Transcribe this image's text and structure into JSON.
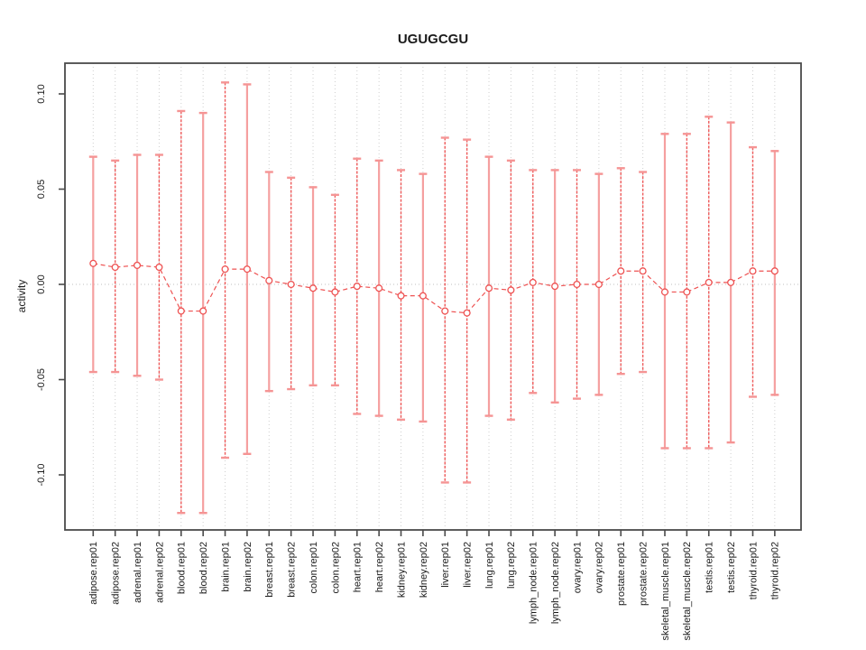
{
  "title": "UGUGCGU",
  "chart_data": {
    "type": "line",
    "subtype": "points-with-error-bars",
    "title": "UGUGCGU",
    "xlabel": "",
    "ylabel": "activity",
    "ylim": [
      -0.125,
      0.115
    ],
    "yticks": [
      0.1,
      0.05,
      0.0,
      -0.05,
      -0.1
    ],
    "ytick_labels": [
      "0.10",
      "0.05",
      "0.00",
      "-0.05",
      "-0.10"
    ],
    "grid": "dotted vertical gridline at every category; dotted horizontal line at y=0; no legend",
    "categories": [
      "adipose.rep01",
      "adipose.rep02",
      "adrenal.rep01",
      "adrenal.rep02",
      "blood.rep01",
      "blood.rep02",
      "brain.rep01",
      "brain.rep02",
      "breast.rep01",
      "breast.rep02",
      "colon.rep01",
      "colon.rep02",
      "heart.rep01",
      "heart.rep02",
      "kidney.rep01",
      "kidney.rep02",
      "liver.rep01",
      "liver.rep02",
      "lung.rep01",
      "lung.rep02",
      "lymph_node.rep01",
      "lymph_node.rep02",
      "ovary.rep01",
      "ovary.rep02",
      "prostate.rep01",
      "prostate.rep02",
      "skeletal_muscle.rep01",
      "skeletal_muscle.rep02",
      "testis.rep01",
      "testis.rep02",
      "thyroid.rep01",
      "thyroid.rep02"
    ],
    "series": [
      {
        "name": "activity",
        "values": [
          0.011,
          0.009,
          0.01,
          0.009,
          -0.014,
          -0.014,
          0.008,
          0.008,
          0.002,
          0.0,
          -0.002,
          -0.004,
          -0.001,
          -0.002,
          -0.006,
          -0.006,
          -0.014,
          -0.015,
          -0.002,
          -0.003,
          0.001,
          -0.001,
          0.0,
          0.0,
          0.007,
          0.007,
          -0.004,
          -0.004,
          0.001,
          0.001,
          0.007,
          0.007
        ],
        "error_high": [
          0.067,
          0.065,
          0.068,
          0.068,
          0.091,
          0.09,
          0.106,
          0.105,
          0.059,
          0.056,
          0.051,
          0.047,
          0.066,
          0.065,
          0.06,
          0.058,
          0.077,
          0.076,
          0.067,
          0.065,
          0.06,
          0.06,
          0.06,
          0.058,
          0.061,
          0.059,
          0.079,
          0.079,
          0.088,
          0.085,
          0.072,
          0.07
        ],
        "error_low": [
          -0.046,
          -0.046,
          -0.048,
          -0.05,
          -0.12,
          -0.12,
          -0.091,
          -0.089,
          -0.056,
          -0.055,
          -0.053,
          -0.053,
          -0.068,
          -0.069,
          -0.071,
          -0.072,
          -0.104,
          -0.104,
          -0.069,
          -0.071,
          -0.057,
          -0.062,
          -0.06,
          -0.058,
          -0.047,
          -0.046,
          -0.086,
          -0.086,
          -0.086,
          -0.083,
          -0.059,
          -0.058
        ]
      }
    ],
    "bar_styles": [
      "solid",
      "dashed",
      "solid",
      "dashed",
      "dashed",
      "solid",
      "dashed",
      "solid",
      "solid",
      "dashed",
      "solid",
      "dashed",
      "dashed",
      "solid",
      "dashed",
      "solid",
      "dashed",
      "dashed",
      "solid",
      "dashed",
      "dashed",
      "solid",
      "dashed",
      "solid",
      "dashed",
      "dashed",
      "solid",
      "dashed",
      "dashed",
      "solid",
      "dashed",
      "solid"
    ],
    "colors": {
      "point_stroke": "#ee5252",
      "connector": "#ee5252",
      "bar_solid": "#f5a0a0",
      "bar_dashed": "#ee5a5a",
      "cap": "#f59494",
      "gridline": "#cfcfcf",
      "zero_line": "#bfbfbf",
      "frame": "#4a4a4a",
      "tick": "#4a4a4a",
      "text": "#1a1a1a"
    }
  }
}
